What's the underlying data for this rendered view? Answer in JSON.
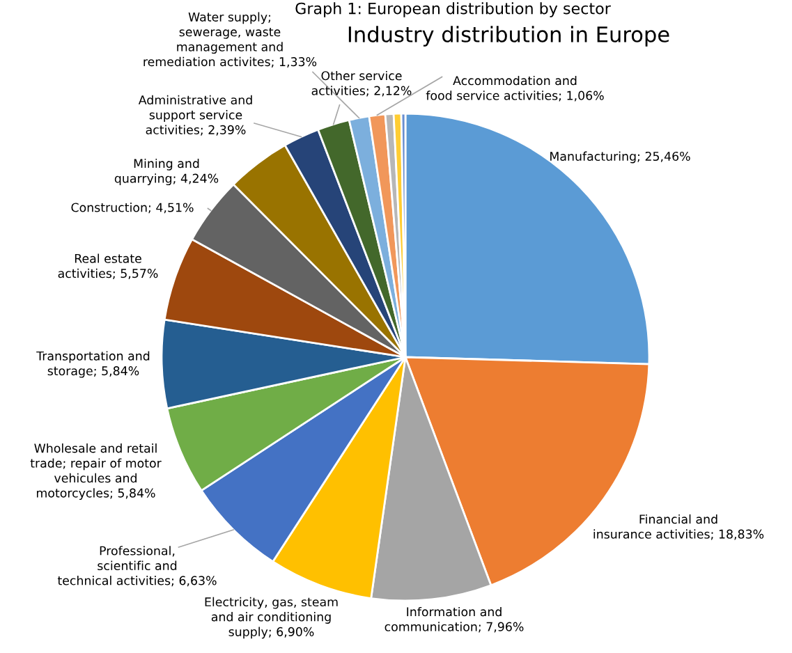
{
  "chart_data": {
    "type": "pie",
    "title": "Industry distribution in Europe",
    "annotations": [
      "Graph 1: European distribution by sector"
    ],
    "categories": [
      "Manufacturing",
      "Financial and insurance activities",
      "Information and communication",
      "Electricity, gas, steam and air conditioning supply",
      "Professional, scientific and technical activities",
      "Wholesale and retail trade; repair of motor vehicules and motorcycles",
      "Transportation and storage",
      "Real estate activities",
      "Construction",
      "Mining and quarrying",
      "Administrative and support service activities",
      "Other service activities",
      "Water supply; sewerage, waste management and remediation activites",
      "Accommodation and food service activities",
      null,
      null,
      null
    ],
    "values": [
      25.46,
      18.83,
      7.96,
      6.9,
      6.63,
      5.84,
      5.84,
      5.57,
      4.51,
      4.24,
      2.39,
      2.12,
      1.33,
      1.06,
      0.55,
      0.5,
      0.27
    ],
    "value_labels": [
      "25,46%",
      "18,83%",
      "7,96%",
      "6,90%",
      "6,63%",
      "5,84%",
      "5,84%",
      "5,57%",
      "4,51%",
      "4,24%",
      "2,39%",
      "2,12%",
      "1,33%",
      "1,06%",
      null,
      null,
      null
    ],
    "colors": [
      "#5b9bd5",
      "#ed7d31",
      "#a5a5a5",
      "#ffc000",
      "#4472c4",
      "#70ad47",
      "#255e91",
      "#9e480e",
      "#636363",
      "#997300",
      "#264478",
      "#43682b",
      "#7cafdd",
      "#f1975a",
      "#b7b7b7",
      "#ffcd33",
      "#698ed0"
    ]
  }
}
